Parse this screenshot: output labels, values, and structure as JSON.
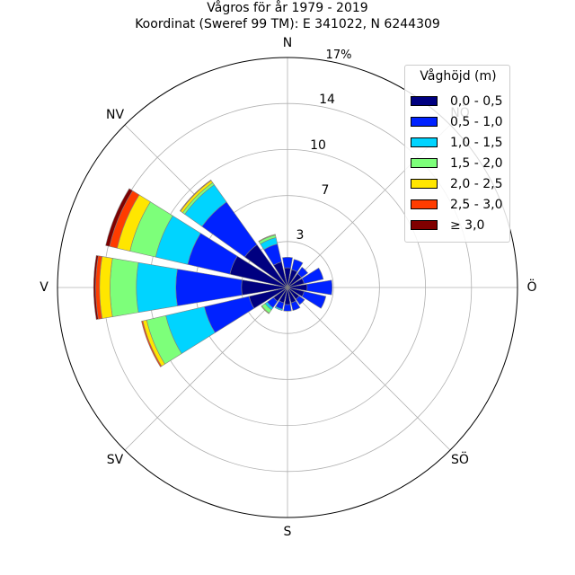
{
  "chart_data": {
    "type": "windrose",
    "title": "Vågros för år 1979 - 2019",
    "subtitle": "Koordinat (Sweref 99 TM): E 341022, N 6244309",
    "radial_unit_label": "17%",
    "radial_ticks": [
      "3",
      "7",
      "10",
      "14"
    ],
    "radial_tick_values": [
      3.5,
      7,
      10.5,
      14
    ],
    "rmax": 17.5,
    "direction_labels": [
      "N",
      "NÖ",
      "Ö",
      "SÖ",
      "S",
      "SV",
      "V",
      "NV"
    ],
    "sector_count": 16,
    "sector_angles_deg": [
      0,
      22.5,
      45,
      67.5,
      90,
      112.5,
      135,
      157.5,
      180,
      202.5,
      225,
      247.5,
      270,
      292.5,
      315,
      337.5
    ],
    "legend": {
      "title": "Våghöjd (m)",
      "bins": [
        "0,0 - 0,5",
        "0,5 - 1,0",
        "1,0 - 1,5",
        "1,5 - 2,0",
        "2,0 - 2,5",
        "2,5 - 3,0",
        "≥ 3,0"
      ],
      "colors": [
        "#000080",
        "#0022ff",
        "#00d4ff",
        "#7dff7a",
        "#ffe600",
        "#ff3c00",
        "#800000"
      ],
      "placement": "top-right"
    },
    "series": [
      {
        "bin": "0,0 - 0,5",
        "values": [
          1.5,
          1.4,
          1.3,
          1.3,
          1.5,
          1.3,
          1.1,
          1.2,
          1.3,
          1.2,
          1.3,
          3.0,
          3.5,
          4.5,
          4.0,
          2.0
        ]
      },
      {
        "bin": "0,5 - 1,0",
        "values": [
          0.8,
          0.8,
          0.6,
          1.5,
          1.9,
          1.7,
          0.5,
          0.6,
          0.5,
          0.5,
          0.6,
          3.5,
          5.0,
          3.3,
          4.0,
          1.4
        ]
      },
      {
        "bin": "1,0 - 1,5",
        "values": [
          0,
          0,
          0,
          0,
          0,
          0,
          0,
          0,
          0,
          0.1,
          0.2,
          3.0,
          3.0,
          2.5,
          1.6,
          0.5
        ]
      },
      {
        "bin": "1,5 - 2,0",
        "values": [
          0,
          0,
          0,
          0,
          0,
          0,
          0,
          0,
          0,
          0,
          0.3,
          1.5,
          2.0,
          2.0,
          0.2,
          0.2
        ]
      },
      {
        "bin": "2,0 - 2,5",
        "values": [
          0,
          0,
          0,
          0,
          0,
          0,
          0,
          0,
          0,
          0,
          0.05,
          0.3,
          0.8,
          1.0,
          0.2,
          0.05
        ]
      },
      {
        "bin": "2,5 - 3,0",
        "values": [
          0,
          0,
          0,
          0,
          0,
          0,
          0,
          0,
          0,
          0,
          0,
          0.1,
          0.3,
          0.6,
          0.05,
          0
        ]
      },
      {
        "bin": "≥ 3,0",
        "values": [
          0,
          0,
          0,
          0,
          0,
          0,
          0,
          0,
          0,
          0,
          0,
          0,
          0.15,
          0.3,
          0,
          0
        ]
      }
    ]
  }
}
